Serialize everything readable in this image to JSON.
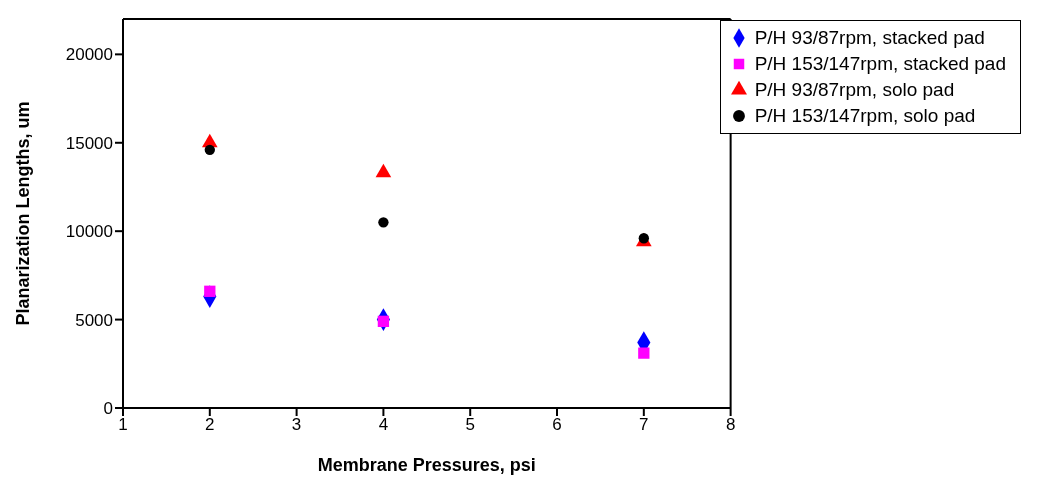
{
  "chart_data": {
    "type": "scatter",
    "xlabel": "Membrane Pressures, psi",
    "ylabel": "Planarization Lengths, um",
    "x": [
      2,
      4,
      7
    ],
    "xlim": [
      1,
      8
    ],
    "xticks": [
      1,
      2,
      3,
      4,
      5,
      6,
      7,
      8
    ],
    "ylim": [
      0,
      22000
    ],
    "yticks": [
      0,
      5000,
      10000,
      15000,
      20000
    ],
    "grid": false,
    "legend": "top right",
    "series": [
      {
        "name": "P/H 93/87rpm, stacked pad",
        "color": "#0000ff",
        "marker": "diamond",
        "values": [
          6300,
          5000,
          3700
        ]
      },
      {
        "name": "P/H 153/147rpm, stacked pad",
        "color": "#ff00ff",
        "marker": "square",
        "values": [
          6600,
          4900,
          3100
        ]
      },
      {
        "name": "P/H 93/87rpm, solo pad",
        "color": "#ff0000",
        "marker": "triangle",
        "values": [
          15000,
          13300,
          9400
        ]
      },
      {
        "name": "P/H 153/147rpm, solo pad",
        "color": "#000000",
        "marker": "circle",
        "values": [
          14600,
          10500,
          9600
        ]
      }
    ]
  }
}
